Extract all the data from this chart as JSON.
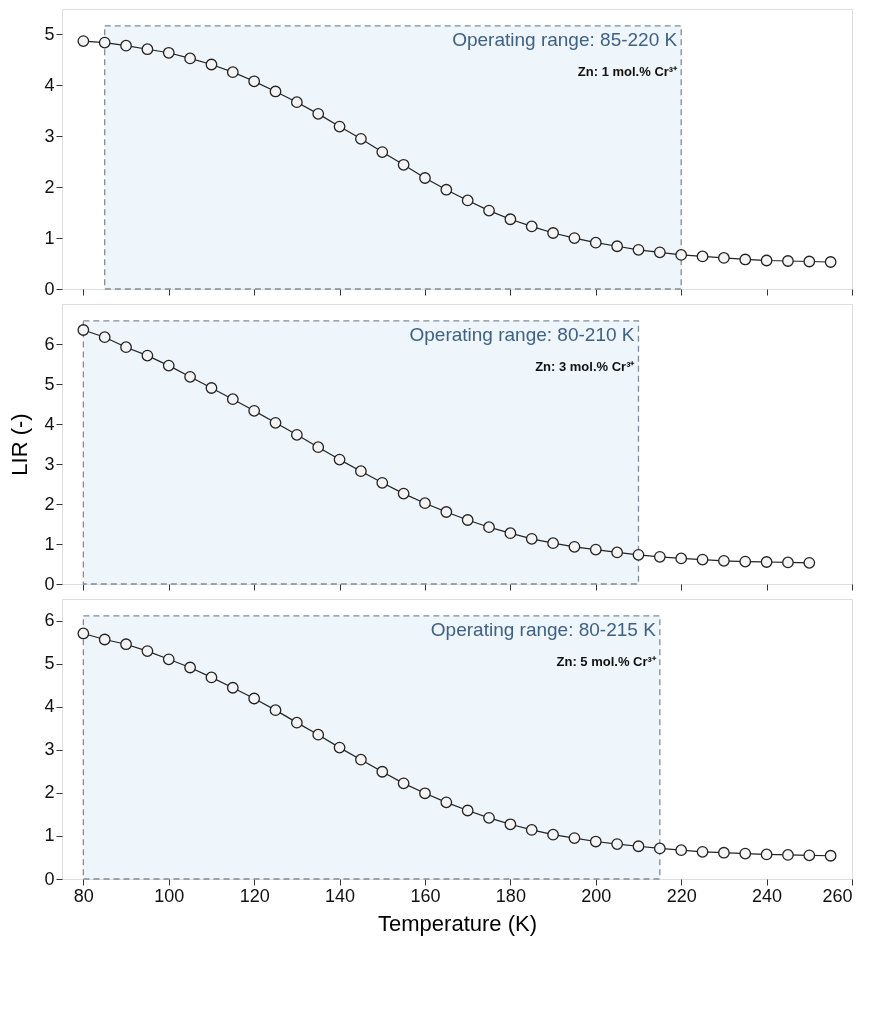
{
  "chart_data": [
    {
      "type": "line",
      "marker": "circle",
      "line_style": "solid",
      "grid": false,
      "tick_labels": "y",
      "xlim": [
        75,
        260
      ],
      "xticks": [
        80,
        100,
        120,
        140,
        160,
        180,
        200,
        220,
        240,
        260
      ],
      "ylim": [
        0,
        5.5
      ],
      "yticks": [
        0,
        1,
        2,
        3,
        4,
        5
      ],
      "x": [
        80,
        85,
        90,
        95,
        100,
        105,
        110,
        115,
        120,
        125,
        130,
        135,
        140,
        145,
        150,
        155,
        160,
        165,
        170,
        175,
        180,
        185,
        190,
        195,
        200,
        205,
        210,
        215,
        220,
        225,
        230,
        235,
        240,
        245,
        250,
        255
      ],
      "series": [
        {
          "color": "#222222",
          "values": [
            4.87,
            4.84,
            4.78,
            4.71,
            4.64,
            4.53,
            4.41,
            4.26,
            4.08,
            3.88,
            3.67,
            3.44,
            3.19,
            2.95,
            2.69,
            2.44,
            2.18,
            1.95,
            1.74,
            1.54,
            1.37,
            1.23,
            1.1,
            1.0,
            0.91,
            0.84,
            0.77,
            0.72,
            0.67,
            0.64,
            0.61,
            0.58,
            0.56,
            0.55,
            0.54,
            0.53
          ]
        }
      ],
      "bands": [
        {
          "axis": "x",
          "from": 85,
          "to": 220,
          "color": "#eef5fb"
        }
      ],
      "annotations": [
        "Operating range: 85-220 K",
        "Zn: 1 mol.% Cr³⁺"
      ]
    },
    {
      "type": "line",
      "marker": "circle",
      "line_style": "solid",
      "grid": false,
      "tick_labels": "y",
      "ylabel": "LIR (-)",
      "xlim": [
        75,
        260
      ],
      "xticks": [
        80,
        100,
        120,
        140,
        160,
        180,
        200,
        220,
        240,
        260
      ],
      "ylim": [
        0,
        7
      ],
      "yticks": [
        0,
        1,
        2,
        3,
        4,
        5,
        6
      ],
      "x": [
        80,
        85,
        90,
        95,
        100,
        105,
        110,
        115,
        120,
        125,
        130,
        135,
        140,
        145,
        150,
        155,
        160,
        165,
        170,
        175,
        180,
        185,
        190,
        195,
        200,
        205,
        210,
        215,
        220,
        225,
        230,
        235,
        240,
        245,
        250
      ],
      "series": [
        {
          "color": "#222222",
          "values": [
            6.35,
            6.17,
            5.92,
            5.71,
            5.46,
            5.18,
            4.9,
            4.62,
            4.33,
            4.03,
            3.73,
            3.42,
            3.11,
            2.82,
            2.53,
            2.26,
            2.02,
            1.8,
            1.6,
            1.42,
            1.27,
            1.13,
            1.02,
            0.93,
            0.86,
            0.79,
            0.73,
            0.68,
            0.64,
            0.61,
            0.58,
            0.56,
            0.55,
            0.54,
            0.53
          ]
        }
      ],
      "bands": [
        {
          "axis": "x",
          "from": 80,
          "to": 210,
          "color": "#eef5fb"
        }
      ],
      "annotations": [
        "Operating range: 80-210 K",
        "Zn: 3 mol.% Cr³⁺"
      ]
    },
    {
      "type": "line",
      "marker": "circle",
      "line_style": "solid",
      "grid": false,
      "xlabel": "Temperature (K)",
      "xlim": [
        75,
        260
      ],
      "xticks": [
        80,
        100,
        120,
        140,
        160,
        180,
        200,
        220,
        240,
        260
      ],
      "ylim": [
        0,
        6.5
      ],
      "yticks": [
        0,
        1,
        2,
        3,
        4,
        5,
        6
      ],
      "x": [
        80,
        85,
        90,
        95,
        100,
        105,
        110,
        115,
        120,
        125,
        130,
        135,
        140,
        145,
        150,
        155,
        160,
        165,
        170,
        175,
        180,
        185,
        190,
        195,
        200,
        205,
        210,
        215,
        220,
        225,
        230,
        235,
        240,
        245,
        250,
        255
      ],
      "series": [
        {
          "color": "#222222",
          "values": [
            5.7,
            5.56,
            5.45,
            5.29,
            5.1,
            4.91,
            4.68,
            4.44,
            4.19,
            3.92,
            3.63,
            3.35,
            3.05,
            2.77,
            2.49,
            2.22,
            1.99,
            1.78,
            1.59,
            1.42,
            1.27,
            1.14,
            1.03,
            0.95,
            0.87,
            0.81,
            0.76,
            0.71,
            0.67,
            0.63,
            0.61,
            0.59,
            0.57,
            0.56,
            0.55,
            0.54
          ]
        }
      ],
      "bands": [
        {
          "axis": "x",
          "from": 80,
          "to": 215,
          "color": "#eef5fb"
        }
      ],
      "annotations": [
        "Operating range: 80-215 K",
        "Zn: 5 mol.% Cr³⁺"
      ]
    }
  ]
}
